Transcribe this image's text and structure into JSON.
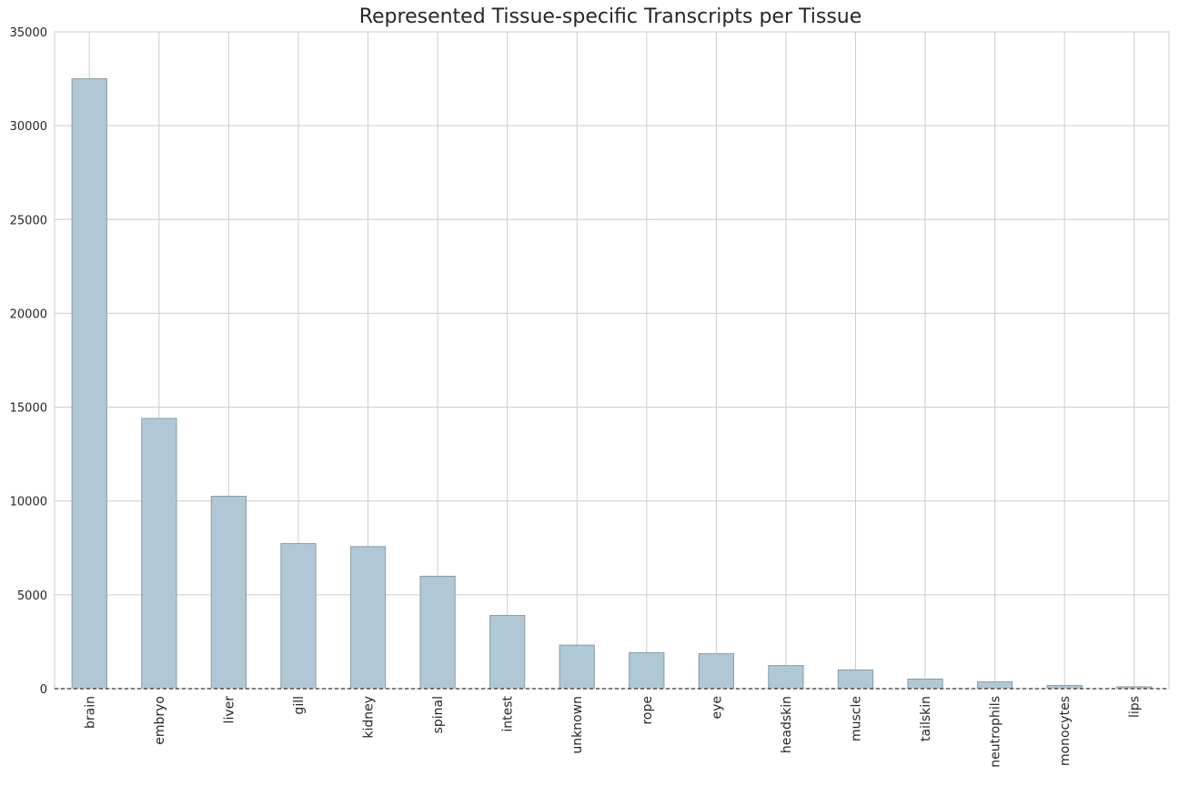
{
  "chart_data": {
    "type": "bar",
    "title": "Represented Tissue-specific Transcripts per Tissue",
    "xlabel": "",
    "ylabel": "",
    "categories": [
      "brain",
      "embryo",
      "liver",
      "gill",
      "kidney",
      "spinal",
      "intest",
      "unknown",
      "rope",
      "eye",
      "headskin",
      "muscle",
      "tailskin",
      "neutrophils",
      "monocytes",
      "lips"
    ],
    "values": [
      32500,
      14400,
      10250,
      7730,
      7570,
      5990,
      3900,
      2320,
      1920,
      1860,
      1230,
      1000,
      510,
      360,
      170,
      100
    ],
    "ylim": [
      0,
      35000
    ],
    "yticks": [
      "0",
      "5000",
      "10000",
      "15000",
      "20000",
      "25000",
      "30000",
      "35000"
    ],
    "grid": true,
    "legend": "none",
    "colors": {
      "bar_fill": "#b0c8d5",
      "bar_edge": "#8a9ca4",
      "grid": "#cccccc",
      "zero_line": "#000000"
    }
  }
}
